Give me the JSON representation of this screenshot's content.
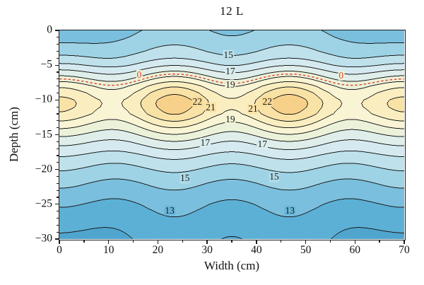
{
  "chart_data": {
    "type": "contour",
    "title": "12 L",
    "xlabel": "Width (cm)",
    "ylabel": "Depth (cm)",
    "x_range": [
      0,
      70
    ],
    "y_range": [
      -30,
      0
    ],
    "x_ticks": {
      "values": [
        0,
        10,
        20,
        30,
        40,
        50,
        60,
        70
      ],
      "labels": [
        "0",
        "10",
        "20",
        "30",
        "40",
        "50",
        "60",
        "70"
      ],
      "minor_step": 5
    },
    "y_ticks": {
      "values": [
        0,
        -5,
        -10,
        -15,
        -20,
        -25,
        -30
      ],
      "labels": [
        "0",
        "−5",
        "−10",
        "−15",
        "−20",
        "−25",
        "−30"
      ],
      "minor_step": 1
    },
    "levels": [
      12,
      13,
      14,
      15,
      16,
      17,
      18,
      19,
      20,
      21,
      22
    ],
    "labeled_levels": [
      13,
      15,
      17,
      19,
      21,
      22
    ],
    "line_color": "#1b1b1b",
    "band_colors": [
      "#4FA5CE",
      "#5CB0D6",
      "#7ABFDD",
      "#9ED3E5",
      "#BEE1EB",
      "#D4EAF0",
      "#DFEEEA",
      "#EBF2D9",
      "#F8F4D4",
      "#FAEEC0",
      "#F9E2A6",
      "#F7D189"
    ],
    "maxima": [
      {
        "x": 23,
        "depth": -10.5,
        "value": 22.5
      },
      {
        "x": 46,
        "depth": -10.5,
        "value": 22.5
      }
    ],
    "saddle": {
      "x": 34.7,
      "depth": -10.5,
      "value": 20.2
    },
    "contour_labels": [
      {
        "text": "15",
        "x": 34.3,
        "depth": -3.6,
        "halo": "#BEE1EB"
      },
      {
        "text": "17",
        "x": 34.7,
        "depth": -5.9,
        "halo": "#D9ECEE"
      },
      {
        "text": "19",
        "x": 34.7,
        "depth": -7.8,
        "halo": "#F2F3D7"
      },
      {
        "text": "22",
        "x": 28.0,
        "depth": -10.3,
        "halo": "#F8DB98"
      },
      {
        "text": "21",
        "x": 30.7,
        "depth": -11.1,
        "halo": "#F9E3A6"
      },
      {
        "text": "21",
        "x": 39.3,
        "depth": -11.3,
        "halo": "#F9E3A6"
      },
      {
        "text": "22",
        "x": 42.2,
        "depth": -10.3,
        "halo": "#F8DB98"
      },
      {
        "text": "19",
        "x": 34.7,
        "depth": -12.8,
        "halo": "#F2F3D7"
      },
      {
        "text": "17",
        "x": 29.6,
        "depth": -16.2,
        "halo": "#D9ECEE"
      },
      {
        "text": "17",
        "x": 41.2,
        "depth": -16.4,
        "halo": "#D9ECEE"
      },
      {
        "text": "15",
        "x": 25.5,
        "depth": -21.3,
        "halo": "#AFDBE8"
      },
      {
        "text": "15",
        "x": 43.6,
        "depth": -21.1,
        "halo": "#AFDBE8"
      },
      {
        "text": "13",
        "x": 22.4,
        "depth": -25.9,
        "halo": "#69B7DA"
      },
      {
        "text": "13",
        "x": 46.8,
        "depth": -25.9,
        "halo": "#69B7DA"
      }
    ],
    "zero_line": {
      "level": 18.55,
      "color": "#E2402E",
      "labels": [
        {
          "text": "0",
          "x": 16.2,
          "depth": -6.4
        },
        {
          "text": "0",
          "x": 57.2,
          "depth": -6.5
        }
      ]
    },
    "field_model": {
      "period": 23.3333,
      "profile": [
        [
          0,
          14.1
        ],
        [
          1,
          14.35
        ],
        [
          2,
          14.65
        ],
        [
          3,
          15.05
        ],
        [
          4,
          15.6
        ],
        [
          5,
          16.45
        ],
        [
          6,
          17.55
        ],
        [
          7,
          18.7
        ],
        [
          8,
          19.9
        ],
        [
          9,
          20.75
        ],
        [
          10,
          21.3
        ],
        [
          10.5,
          21.38
        ],
        [
          11,
          21.32
        ],
        [
          12,
          20.95
        ],
        [
          13,
          20.1
        ],
        [
          14,
          19.2
        ],
        [
          15,
          18.3
        ],
        [
          16,
          17.45
        ],
        [
          17,
          16.7
        ],
        [
          18,
          16.0
        ],
        [
          19,
          15.4
        ],
        [
          20,
          14.9
        ],
        [
          21,
          14.45
        ],
        [
          22,
          14.05
        ],
        [
          23,
          13.7
        ],
        [
          24,
          13.38
        ],
        [
          25,
          13.1
        ],
        [
          26,
          12.88
        ],
        [
          27,
          12.68
        ],
        [
          28,
          12.5
        ],
        [
          29,
          12.36
        ],
        [
          30,
          12.24
        ]
      ],
      "amplitude": {
        "base": 0.285,
        "peak": 0.92,
        "center": 10.5,
        "width": 4.6
      },
      "edge_cool": {
        "xwidth": 9.5,
        "surface": {
          "amp": 0.9,
          "dwidth": 4.0
        },
        "mid": {
          "amp": 1.25,
          "center": 10.5,
          "dwidth": 6.0
        },
        "deep": {
          "amp": 0.65,
          "center": 30,
          "dwidth": 5.0
        }
      }
    }
  }
}
